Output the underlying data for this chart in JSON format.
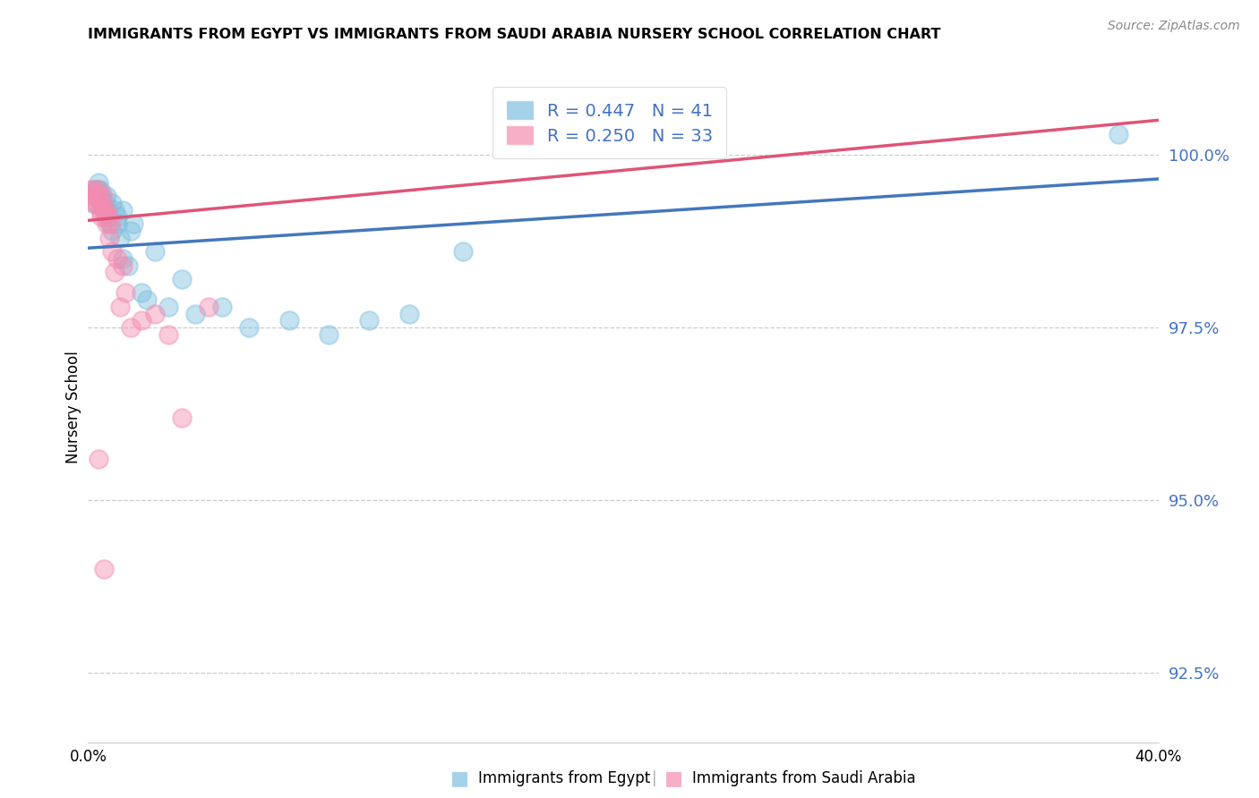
{
  "title": "IMMIGRANTS FROM EGYPT VS IMMIGRANTS FROM SAUDI ARABIA NURSERY SCHOOL CORRELATION CHART",
  "source": "Source: ZipAtlas.com",
  "ylabel": "Nursery School",
  "ytick_values": [
    92.5,
    95.0,
    97.5,
    100.0
  ],
  "xlim": [
    0.0,
    40.0
  ],
  "ylim": [
    91.5,
    101.2
  ],
  "R_egypt": 0.447,
  "N_egypt": 41,
  "R_saudi": 0.25,
  "N_saudi": 33,
  "egypt_color": "#7fbfdf",
  "saudi_color": "#f48cb0",
  "egypt_line_color": "#4477bb",
  "saudi_line_color": "#dd5577",
  "egypt_x": [
    0.15,
    0.25,
    0.3,
    0.35,
    0.4,
    0.45,
    0.5,
    0.55,
    0.6,
    0.65,
    0.7,
    0.75,
    0.8,
    0.9,
    1.0,
    1.1,
    1.2,
    1.3,
    1.5,
    1.7,
    2.0,
    2.2,
    2.5,
    3.0,
    3.5,
    4.0,
    5.0,
    6.0,
    7.5,
    9.0,
    10.5,
    12.0,
    14.0,
    0.3,
    0.5,
    0.7,
    0.9,
    1.1,
    1.3,
    1.6,
    38.5
  ],
  "egypt_y": [
    99.3,
    99.5,
    99.4,
    99.5,
    99.6,
    99.5,
    99.4,
    99.3,
    99.2,
    99.3,
    99.4,
    99.1,
    99.0,
    99.3,
    99.2,
    99.0,
    98.8,
    98.5,
    98.4,
    99.0,
    98.0,
    97.9,
    98.6,
    97.8,
    98.2,
    97.7,
    97.8,
    97.5,
    97.6,
    97.4,
    97.6,
    97.7,
    98.6,
    99.5,
    99.3,
    99.2,
    98.9,
    99.1,
    99.2,
    98.9,
    100.3
  ],
  "saudi_x": [
    0.1,
    0.15,
    0.2,
    0.25,
    0.3,
    0.35,
    0.4,
    0.45,
    0.5,
    0.55,
    0.6,
    0.65,
    0.7,
    0.75,
    0.8,
    0.85,
    0.9,
    1.0,
    1.1,
    1.2,
    1.4,
    1.6,
    2.0,
    2.5,
    3.0,
    3.5,
    4.5,
    1.3,
    0.3,
    0.5,
    0.7,
    0.4,
    0.6
  ],
  "saudi_y": [
    99.5,
    99.4,
    99.5,
    99.3,
    99.4,
    99.5,
    99.4,
    99.2,
    99.3,
    99.4,
    99.2,
    99.1,
    99.0,
    99.1,
    98.8,
    99.0,
    98.6,
    98.3,
    98.5,
    97.8,
    98.0,
    97.5,
    97.6,
    97.7,
    97.4,
    96.2,
    97.8,
    98.4,
    99.3,
    99.1,
    99.2,
    95.6,
    94.0
  ],
  "egypt_line_x0": 0.0,
  "egypt_line_y0": 98.65,
  "egypt_line_x1": 40.0,
  "egypt_line_y1": 99.65,
  "saudi_line_x0": 0.0,
  "saudi_line_y0": 99.05,
  "saudi_line_x1": 40.0,
  "saudi_line_y1": 100.5
}
